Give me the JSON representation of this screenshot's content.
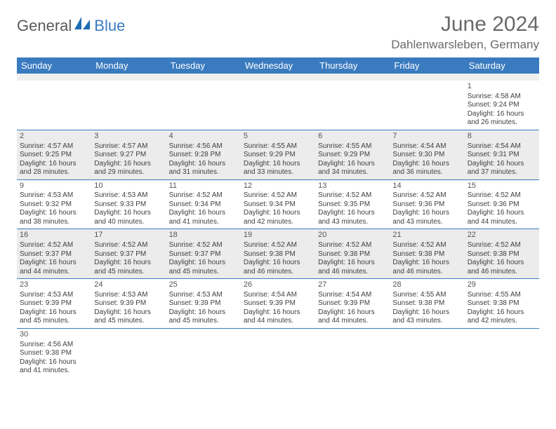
{
  "brand": {
    "part1": "General",
    "part2": "Blue"
  },
  "header": {
    "month_title": "June 2024",
    "location": "Dahlenwarsleben, Germany"
  },
  "colors": {
    "header_bg": "#3a7bbf",
    "header_text": "#ffffff",
    "row_border": "#3a7bbf",
    "shade_bg": "#ececec",
    "body_text": "#404040",
    "title_text": "#6a6a6a",
    "logo_gray": "#5a5a5a",
    "logo_blue": "#3a7bbf"
  },
  "day_headers": [
    "Sunday",
    "Monday",
    "Tuesday",
    "Wednesday",
    "Thursday",
    "Friday",
    "Saturday"
  ],
  "weeks": [
    [
      null,
      null,
      null,
      null,
      null,
      null,
      {
        "n": "1",
        "sr": "4:58 AM",
        "ss": "9:24 PM",
        "dh": "16",
        "dm": "26"
      }
    ],
    [
      {
        "n": "2",
        "sr": "4:57 AM",
        "ss": "9:25 PM",
        "dh": "16",
        "dm": "28"
      },
      {
        "n": "3",
        "sr": "4:57 AM",
        "ss": "9:27 PM",
        "dh": "16",
        "dm": "29"
      },
      {
        "n": "4",
        "sr": "4:56 AM",
        "ss": "9:28 PM",
        "dh": "16",
        "dm": "31"
      },
      {
        "n": "5",
        "sr": "4:55 AM",
        "ss": "9:29 PM",
        "dh": "16",
        "dm": "33"
      },
      {
        "n": "6",
        "sr": "4:55 AM",
        "ss": "9:29 PM",
        "dh": "16",
        "dm": "34"
      },
      {
        "n": "7",
        "sr": "4:54 AM",
        "ss": "9:30 PM",
        "dh": "16",
        "dm": "36"
      },
      {
        "n": "8",
        "sr": "4:54 AM",
        "ss": "9:31 PM",
        "dh": "16",
        "dm": "37"
      }
    ],
    [
      {
        "n": "9",
        "sr": "4:53 AM",
        "ss": "9:32 PM",
        "dh": "16",
        "dm": "38"
      },
      {
        "n": "10",
        "sr": "4:53 AM",
        "ss": "9:33 PM",
        "dh": "16",
        "dm": "40"
      },
      {
        "n": "11",
        "sr": "4:52 AM",
        "ss": "9:34 PM",
        "dh": "16",
        "dm": "41"
      },
      {
        "n": "12",
        "sr": "4:52 AM",
        "ss": "9:34 PM",
        "dh": "16",
        "dm": "42"
      },
      {
        "n": "13",
        "sr": "4:52 AM",
        "ss": "9:35 PM",
        "dh": "16",
        "dm": "43"
      },
      {
        "n": "14",
        "sr": "4:52 AM",
        "ss": "9:36 PM",
        "dh": "16",
        "dm": "43"
      },
      {
        "n": "15",
        "sr": "4:52 AM",
        "ss": "9:36 PM",
        "dh": "16",
        "dm": "44"
      }
    ],
    [
      {
        "n": "16",
        "sr": "4:52 AM",
        "ss": "9:37 PM",
        "dh": "16",
        "dm": "44"
      },
      {
        "n": "17",
        "sr": "4:52 AM",
        "ss": "9:37 PM",
        "dh": "16",
        "dm": "45"
      },
      {
        "n": "18",
        "sr": "4:52 AM",
        "ss": "9:37 PM",
        "dh": "16",
        "dm": "45"
      },
      {
        "n": "19",
        "sr": "4:52 AM",
        "ss": "9:38 PM",
        "dh": "16",
        "dm": "46"
      },
      {
        "n": "20",
        "sr": "4:52 AM",
        "ss": "9:38 PM",
        "dh": "16",
        "dm": "46"
      },
      {
        "n": "21",
        "sr": "4:52 AM",
        "ss": "9:38 PM",
        "dh": "16",
        "dm": "46"
      },
      {
        "n": "22",
        "sr": "4:52 AM",
        "ss": "9:38 PM",
        "dh": "16",
        "dm": "46"
      }
    ],
    [
      {
        "n": "23",
        "sr": "4:53 AM",
        "ss": "9:39 PM",
        "dh": "16",
        "dm": "45"
      },
      {
        "n": "24",
        "sr": "4:53 AM",
        "ss": "9:39 PM",
        "dh": "16",
        "dm": "45"
      },
      {
        "n": "25",
        "sr": "4:53 AM",
        "ss": "9:39 PM",
        "dh": "16",
        "dm": "45"
      },
      {
        "n": "26",
        "sr": "4:54 AM",
        "ss": "9:39 PM",
        "dh": "16",
        "dm": "44"
      },
      {
        "n": "27",
        "sr": "4:54 AM",
        "ss": "9:39 PM",
        "dh": "16",
        "dm": "44"
      },
      {
        "n": "28",
        "sr": "4:55 AM",
        "ss": "9:38 PM",
        "dh": "16",
        "dm": "43"
      },
      {
        "n": "29",
        "sr": "4:55 AM",
        "ss": "9:38 PM",
        "dh": "16",
        "dm": "42"
      }
    ],
    [
      {
        "n": "30",
        "sr": "4:56 AM",
        "ss": "9:38 PM",
        "dh": "16",
        "dm": "41"
      },
      null,
      null,
      null,
      null,
      null,
      null
    ]
  ],
  "labels": {
    "sunrise": "Sunrise:",
    "sunset": "Sunset:",
    "daylight_prefix": "Daylight:",
    "hours_word": "hours",
    "and_word": "and",
    "minutes_word": "minutes."
  }
}
